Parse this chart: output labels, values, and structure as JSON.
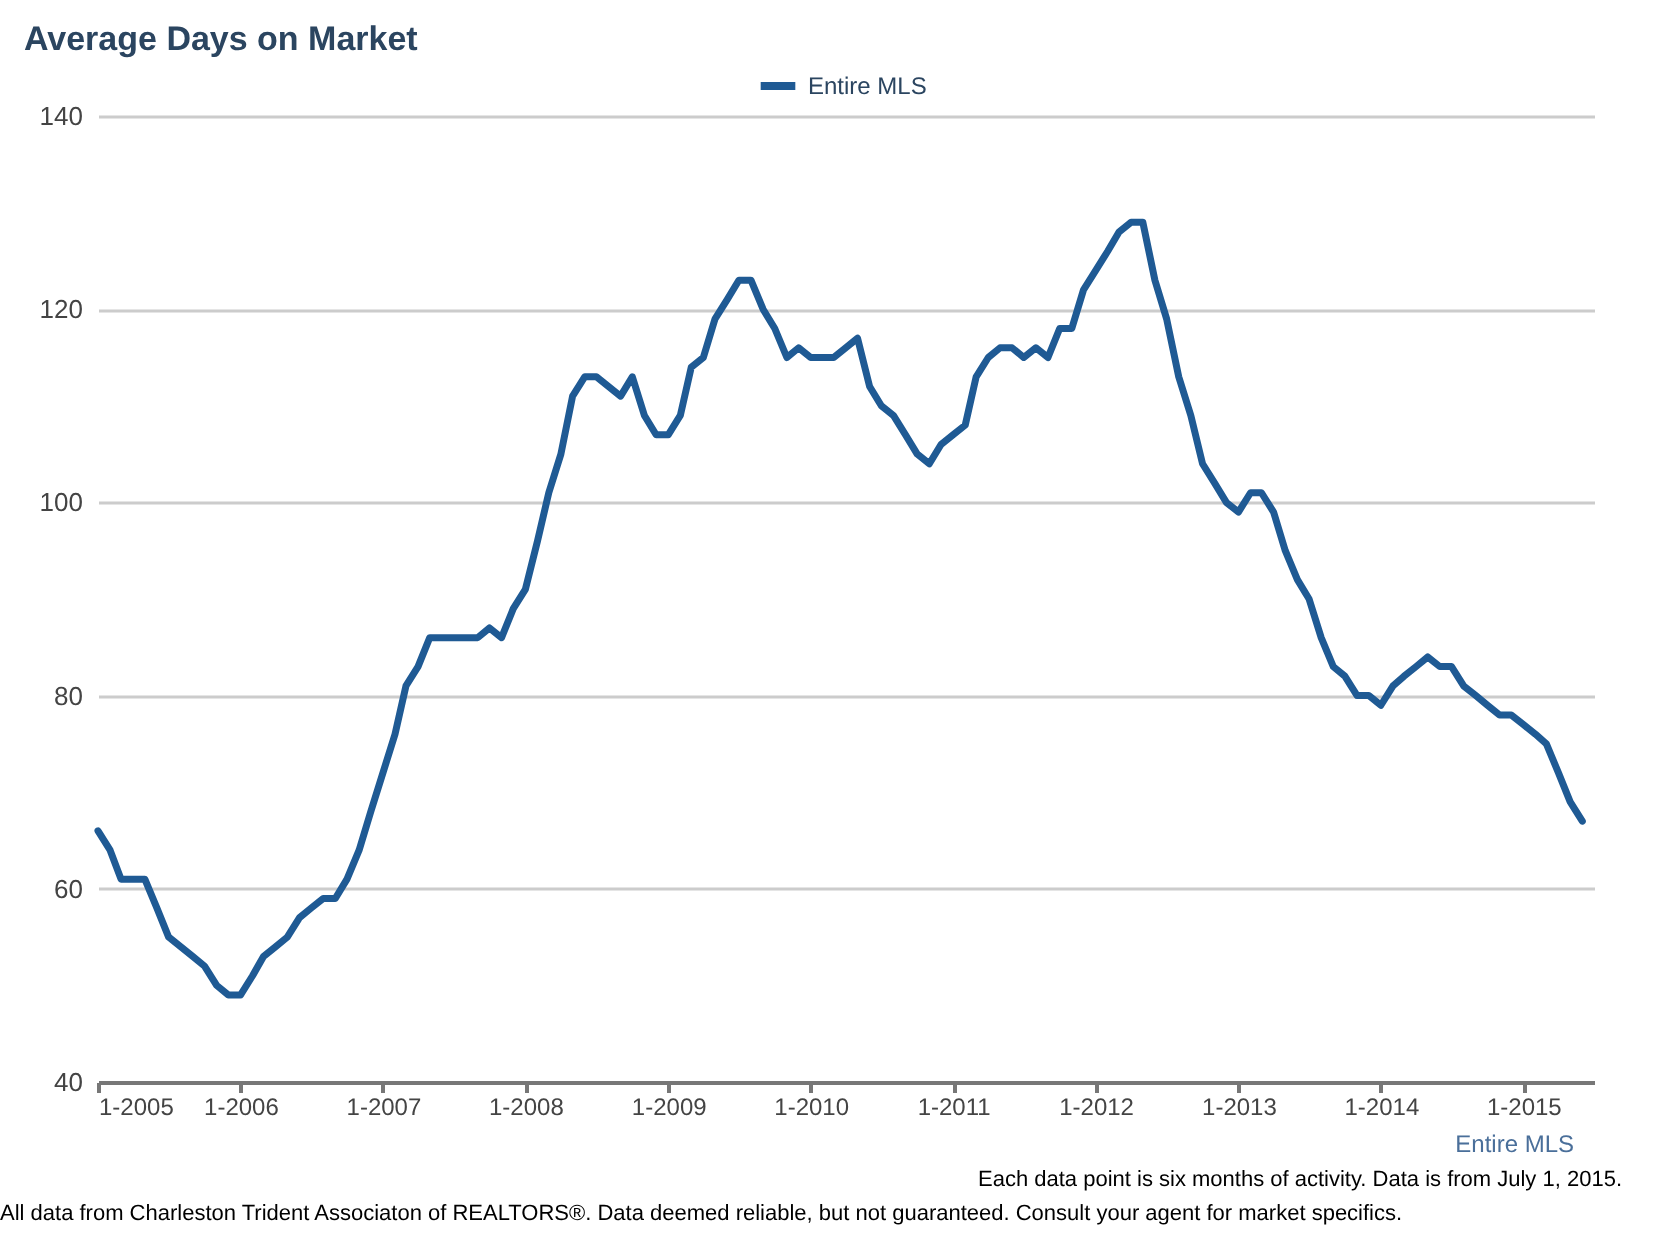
{
  "chart_data": {
    "type": "line",
    "title": "Average Days on Market",
    "x": [
      "2005-01",
      "2005-02",
      "2005-03",
      "2005-04",
      "2005-05",
      "2005-06",
      "2005-07",
      "2005-08",
      "2005-09",
      "2005-10",
      "2005-11",
      "2005-12",
      "2006-01",
      "2006-02",
      "2006-03",
      "2006-04",
      "2006-05",
      "2006-06",
      "2006-07",
      "2006-08",
      "2006-09",
      "2006-10",
      "2006-11",
      "2006-12",
      "2007-01",
      "2007-02",
      "2007-03",
      "2007-04",
      "2007-05",
      "2007-06",
      "2007-07",
      "2007-08",
      "2007-09",
      "2007-10",
      "2007-11",
      "2007-12",
      "2008-01",
      "2008-02",
      "2008-03",
      "2008-04",
      "2008-05",
      "2008-06",
      "2008-07",
      "2008-08",
      "2008-09",
      "2008-10",
      "2008-11",
      "2008-12",
      "2009-01",
      "2009-02",
      "2009-03",
      "2009-04",
      "2009-05",
      "2009-06",
      "2009-07",
      "2009-08",
      "2009-09",
      "2009-10",
      "2009-11",
      "2009-12",
      "2010-01",
      "2010-02",
      "2010-03",
      "2010-04",
      "2010-05",
      "2010-06",
      "2010-07",
      "2010-08",
      "2010-09",
      "2010-10",
      "2010-11",
      "2010-12",
      "2011-01",
      "2011-02",
      "2011-03",
      "2011-04",
      "2011-05",
      "2011-06",
      "2011-07",
      "2011-08",
      "2011-09",
      "2011-10",
      "2011-11",
      "2011-12",
      "2012-01",
      "2012-02",
      "2012-03",
      "2012-04",
      "2012-05",
      "2012-06",
      "2012-07",
      "2012-08",
      "2012-09",
      "2012-10",
      "2012-11",
      "2012-12",
      "2013-01",
      "2013-02",
      "2013-03",
      "2013-04",
      "2013-05",
      "2013-06",
      "2013-07",
      "2013-08",
      "2013-09",
      "2013-10",
      "2013-11",
      "2013-12",
      "2014-01",
      "2014-02",
      "2014-03",
      "2014-04",
      "2014-05",
      "2014-06",
      "2014-07",
      "2014-08",
      "2014-09",
      "2014-10",
      "2014-11",
      "2014-12",
      "2015-01",
      "2015-02",
      "2015-03",
      "2015-04",
      "2015-05",
      "2015-06"
    ],
    "series": [
      {
        "name": "Entire MLS",
        "color": "#1f5a94",
        "values": [
          66,
          64,
          61,
          61,
          61,
          58,
          55,
          54,
          53,
          52,
          50,
          49,
          49,
          51,
          53,
          54,
          55,
          57,
          58,
          59,
          59,
          61,
          64,
          68,
          72,
          76,
          81,
          83,
          86,
          86,
          86,
          86,
          86,
          87,
          86,
          89,
          91,
          96,
          101,
          105,
          111,
          113,
          113,
          112,
          111,
          113,
          109,
          107,
          107,
          109,
          114,
          115,
          119,
          121,
          123,
          123,
          120,
          118,
          115,
          116,
          115,
          115,
          115,
          116,
          117,
          112,
          110,
          109,
          107,
          105,
          104,
          106,
          107,
          108,
          113,
          115,
          116,
          116,
          115,
          116,
          115,
          118,
          118,
          122,
          124,
          126,
          128,
          129,
          129,
          123,
          119,
          113,
          109,
          104,
          102,
          100,
          99,
          101,
          101,
          99,
          95,
          92,
          90,
          86,
          83,
          82,
          80,
          80,
          79,
          81,
          82,
          83,
          84,
          83,
          83,
          81,
          80,
          79,
          78,
          78,
          77,
          76,
          75,
          72,
          69,
          67
        ]
      }
    ],
    "xlim": [
      "2005-01",
      "2015-07"
    ],
    "xticks": [
      {
        "value": "2005-01",
        "label": "1-2005"
      },
      {
        "value": "2006-01",
        "label": "1-2006"
      },
      {
        "value": "2007-01",
        "label": "1-2007"
      },
      {
        "value": "2008-01",
        "label": "1-2008"
      },
      {
        "value": "2009-01",
        "label": "1-2009"
      },
      {
        "value": "2010-01",
        "label": "1-2010"
      },
      {
        "value": "2011-01",
        "label": "1-2011"
      },
      {
        "value": "2012-01",
        "label": "1-2012"
      },
      {
        "value": "2013-01",
        "label": "1-2013"
      },
      {
        "value": "2014-01",
        "label": "1-2014"
      },
      {
        "value": "2015-01",
        "label": "1-2015"
      }
    ],
    "ylim": [
      40,
      140
    ],
    "yticks": [
      40,
      60,
      80,
      100,
      120,
      140
    ],
    "grid": "y",
    "legend": "top",
    "marker": "none",
    "line_style": "solid",
    "annotations": [
      "Entire MLS",
      "Each data point is six months of activity. Data is from July 1, 2015.",
      "All data from Charleston Trident Associaton of REALTORS®. Data deemed reliable, but not guaranteed. Consult your agent for market specifics."
    ]
  }
}
